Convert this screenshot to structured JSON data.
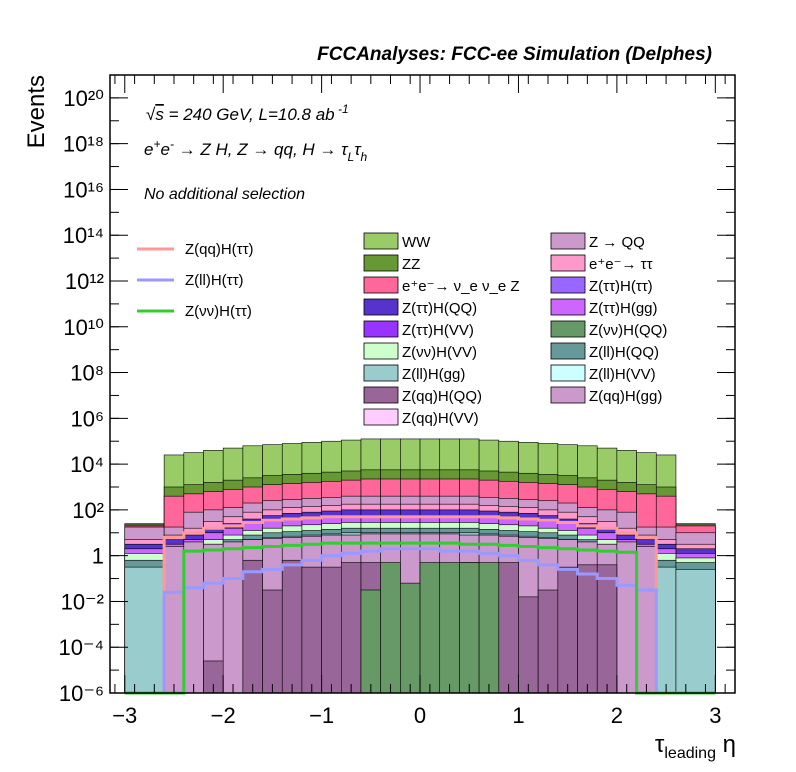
{
  "header": {
    "title": "FCCAnalyses: FCC-ee Simulation (Delphes)"
  },
  "annotations": {
    "energy_lumi": "√s = 240 GeV, L=10.8 ab ⁻¹",
    "process": "e⁺e⁻ → Z H, Z → qq, H → τ_L τ_h",
    "selection": "No additional selection"
  },
  "chart_data": {
    "type": "area",
    "xlabel": "τ_leading η",
    "ylabel": "Events",
    "xlim": [
      -3.15,
      3.2
    ],
    "ylim_log10": [
      -6,
      21
    ],
    "y_scale": "log",
    "x_ticks": [
      "−3",
      "−2",
      "−1",
      "0",
      "1",
      "2",
      "3"
    ],
    "y_ticks": [
      "10⁻⁶",
      "10⁻⁴",
      "10⁻²",
      "1",
      "10²",
      "10⁴",
      "10⁶",
      "10⁸",
      "10¹⁰",
      "10¹²",
      "10¹⁴",
      "10¹⁶",
      "10¹⁸",
      "10²⁰"
    ],
    "bin_edges": [
      -3.0,
      -2.6,
      -2.4,
      -2.2,
      -2.0,
      -1.8,
      -1.6,
      -1.4,
      -1.2,
      -1.0,
      -0.8,
      -0.6,
      -0.4,
      -0.2,
      0.0,
      0.2,
      0.4,
      0.6,
      0.8,
      1.0,
      1.2,
      1.4,
      1.6,
      1.8,
      2.0,
      2.2,
      2.4,
      2.6,
      3.0
    ],
    "stack_bands_log10_top": [
      {
        "name": "WW",
        "color": "#99cc66",
        "values": [
          1.4,
          4.4,
          4.5,
          4.6,
          4.7,
          4.8,
          4.85,
          4.9,
          4.95,
          5.0,
          5.05,
          5.1,
          5.1,
          5.1,
          5.1,
          5.1,
          5.1,
          5.05,
          5.0,
          4.95,
          4.9,
          4.85,
          4.8,
          4.7,
          4.6,
          4.5,
          4.4,
          1.4
        ]
      },
      {
        "name": "ZZ",
        "color": "#669933",
        "values": [
          1.35,
          3.0,
          3.1,
          3.2,
          3.3,
          3.4,
          3.5,
          3.55,
          3.6,
          3.65,
          3.7,
          3.75,
          3.75,
          3.75,
          3.75,
          3.75,
          3.75,
          3.7,
          3.65,
          3.6,
          3.55,
          3.5,
          3.4,
          3.3,
          3.2,
          3.1,
          3.0,
          1.35
        ]
      },
      {
        "name": "e⁺e⁻→ ν_e ν_e Z",
        "color": "#ff6699",
        "values": [
          1.3,
          2.6,
          2.7,
          2.8,
          2.9,
          3.0,
          3.1,
          3.15,
          3.2,
          3.25,
          3.3,
          3.35,
          3.35,
          3.35,
          3.35,
          3.35,
          3.35,
          3.3,
          3.25,
          3.2,
          3.15,
          3.1,
          3.0,
          2.9,
          2.8,
          2.7,
          2.6,
          1.3
        ]
      },
      {
        "name": "Z → QQ",
        "color": "#cc99cc",
        "values": [
          1.25,
          1.25,
          1.9,
          2.0,
          2.1,
          2.3,
          2.4,
          2.45,
          2.5,
          2.55,
          2.6,
          2.6,
          2.6,
          2.6,
          2.6,
          2.6,
          2.6,
          2.55,
          2.5,
          2.45,
          2.4,
          2.3,
          2.1,
          2.0,
          1.9,
          1.25,
          1.25,
          1.0
        ]
      },
      {
        "name": "e⁺e⁻→ ττ",
        "color": "#ff99cc",
        "values": [
          0.7,
          0.9,
          1.2,
          1.5,
          1.7,
          1.9,
          2.0,
          2.1,
          2.15,
          2.2,
          2.25,
          2.25,
          2.25,
          2.25,
          2.25,
          2.25,
          2.25,
          2.2,
          2.15,
          2.1,
          2.0,
          1.9,
          1.7,
          1.5,
          1.2,
          0.9,
          0.7,
          0.5
        ]
      },
      {
        "name": "Z(ττ)H(QQ)",
        "color": "#5533cc",
        "values": [
          0.5,
          0.7,
          0.9,
          1.2,
          1.4,
          1.6,
          1.75,
          1.85,
          1.9,
          1.95,
          2.0,
          2.0,
          2.0,
          2.0,
          2.0,
          2.0,
          2.0,
          1.95,
          1.9,
          1.85,
          1.75,
          1.6,
          1.4,
          1.2,
          0.9,
          0.7,
          0.5,
          0.3
        ]
      },
      {
        "name": "Z(ττ)H(gg)",
        "color": "#cc66ff",
        "values": [
          0.3,
          0.5,
          0.7,
          1.0,
          1.2,
          1.4,
          1.5,
          1.6,
          1.65,
          1.7,
          1.75,
          1.75,
          1.75,
          1.75,
          1.75,
          1.75,
          1.75,
          1.7,
          1.65,
          1.6,
          1.5,
          1.4,
          1.2,
          1.0,
          0.7,
          0.5,
          0.3,
          0.1
        ]
      },
      {
        "name": "Z(νν)H(VV)",
        "color": "#ccffcc",
        "values": [
          0.1,
          0.3,
          0.5,
          0.7,
          0.9,
          1.1,
          1.2,
          1.3,
          1.35,
          1.4,
          1.45,
          1.45,
          1.45,
          1.45,
          1.45,
          1.45,
          1.45,
          1.4,
          1.35,
          1.3,
          1.2,
          1.1,
          0.9,
          0.7,
          0.5,
          0.3,
          0.1,
          -0.1
        ]
      },
      {
        "name": "Z(ll)H(QQ)",
        "color": "#669999",
        "values": [
          -0.2,
          0.1,
          0.3,
          0.5,
          0.7,
          0.9,
          1.0,
          1.05,
          1.1,
          1.15,
          1.2,
          1.2,
          1.2,
          1.2,
          1.2,
          1.2,
          1.2,
          1.15,
          1.1,
          1.05,
          1.0,
          0.9,
          0.7,
          0.5,
          0.3,
          0.1,
          -0.2,
          -0.3
        ]
      },
      {
        "name": "Z(ll)H(gg)",
        "color": "#99cccc",
        "values": [
          -0.5,
          -0.4,
          0.0,
          0.3,
          0.5,
          0.7,
          0.8,
          0.85,
          0.9,
          0.95,
          1.0,
          1.0,
          1.0,
          1.0,
          1.0,
          1.0,
          1.0,
          0.95,
          0.9,
          0.85,
          0.8,
          0.7,
          0.5,
          0.3,
          0.0,
          -0.4,
          -0.5,
          -0.6
        ]
      },
      {
        "name": "Z(qq)H(gg)",
        "color": "#cc99cc",
        "values": [
          -6,
          0.4,
          0.6,
          0.5,
          0.6,
          0.7,
          0.75,
          0.8,
          0.85,
          0.9,
          0.9,
          0.95,
          0.95,
          0.95,
          0.95,
          0.95,
          0.9,
          0.9,
          0.85,
          0.8,
          0.75,
          0.7,
          0.6,
          0.5,
          0.6,
          0.4,
          -6,
          -6
        ]
      },
      {
        "name": "Z(qq)H(QQ)",
        "color": "#996699",
        "values": [
          -6,
          -6,
          -6,
          -4.6,
          -6,
          -0.2,
          -1.5,
          -0.2,
          -0.5,
          -0.5,
          -0.3,
          -0.3,
          -1.5,
          -1.8,
          -1.5,
          -1.5,
          -0.3,
          -0.4,
          -0.3,
          -1.8,
          -1.5,
          -0.5,
          -0.4,
          -0.4,
          -6,
          -6,
          -6,
          -6
        ]
      },
      {
        "name": "Z(νν)H(QQ)",
        "color": "#669966",
        "values": [
          -6,
          -6,
          -6,
          -6,
          -6,
          -6,
          -6,
          -6,
          -6,
          -6,
          -6,
          -1.5,
          -0.3,
          -1.2,
          -0.3,
          -0.3,
          -0.3,
          -0.3,
          -6,
          -6,
          -6,
          -6,
          -6,
          -6,
          -6,
          -6,
          -6,
          -6
        ]
      }
    ],
    "overlay_lines_log10": [
      {
        "name": "Z(qq)H(ττ)",
        "color": "#ff9999",
        "values": [
          -6,
          0.8,
          1.0,
          1.2,
          1.3,
          1.45,
          1.55,
          1.6,
          1.65,
          1.7,
          1.7,
          1.7,
          1.7,
          1.7,
          1.7,
          1.7,
          1.7,
          1.7,
          1.65,
          1.6,
          1.55,
          1.45,
          1.3,
          1.2,
          1.0,
          0.8,
          -6,
          -6
        ]
      },
      {
        "name": "Z(ll)H(ττ)",
        "color": "#9999ff",
        "values": [
          -6,
          -1.6,
          -1.4,
          -1.2,
          -1.0,
          -0.7,
          -0.6,
          -0.4,
          -0.2,
          0.0,
          0.1,
          0.2,
          0.3,
          0.3,
          0.3,
          0.2,
          0.2,
          0.1,
          0.0,
          -0.2,
          -0.4,
          -0.6,
          -0.8,
          -1.0,
          -1.3,
          -1.5,
          -6,
          -6
        ]
      },
      {
        "name": "Z(νν)H(ττ)",
        "color": "#33cc33",
        "values": [
          -6,
          -6,
          0.2,
          0.25,
          0.3,
          0.35,
          0.4,
          0.45,
          0.5,
          0.55,
          0.55,
          0.55,
          0.55,
          0.55,
          0.55,
          0.55,
          0.5,
          0.5,
          0.45,
          0.4,
          0.35,
          0.3,
          0.25,
          0.2,
          0.15,
          -6,
          -6,
          -6
        ]
      }
    ],
    "legend_left": [
      {
        "label": "Z(qq)H(ττ)",
        "color": "#ff9999"
      },
      {
        "label": "Z(ll)H(ττ)",
        "color": "#9999ff"
      },
      {
        "label": "Z(νν)H(ττ)",
        "color": "#33cc33"
      }
    ],
    "legend_boxes": [
      {
        "label": "WW",
        "color": "#99cc66"
      },
      {
        "label": "Z → QQ",
        "color": "#cc99cc"
      },
      {
        "label": "ZZ",
        "color": "#669933"
      },
      {
        "label": "e⁺e⁻→ ττ",
        "color": "#ff99cc"
      },
      {
        "label": "e⁺e⁻→ ν_e ν_e Z",
        "color": "#ff6699"
      },
      {
        "label": "Z(ττ)H(ττ)",
        "color": "#9966ff"
      },
      {
        "label": "Z(ττ)H(QQ)",
        "color": "#5533cc"
      },
      {
        "label": "Z(ττ)H(gg)",
        "color": "#cc66ff"
      },
      {
        "label": "Z(ττ)H(VV)",
        "color": "#9933ff"
      },
      {
        "label": "Z(νν)H(QQ)",
        "color": "#669966"
      },
      {
        "label": "Z(νν)H(VV)",
        "color": "#ccffcc"
      },
      {
        "label": "Z(ll)H(QQ)",
        "color": "#669999"
      },
      {
        "label": "Z(ll)H(gg)",
        "color": "#99cccc"
      },
      {
        "label": "Z(ll)H(VV)",
        "color": "#ccffff"
      },
      {
        "label": "Z(qq)H(QQ)",
        "color": "#996699"
      },
      {
        "label": "Z(qq)H(gg)",
        "color": "#cc99cc"
      },
      {
        "label": "Z(qq)H(VV)",
        "color": "#ffccff"
      }
    ],
    "grid": false,
    "legend_placement": "top"
  }
}
